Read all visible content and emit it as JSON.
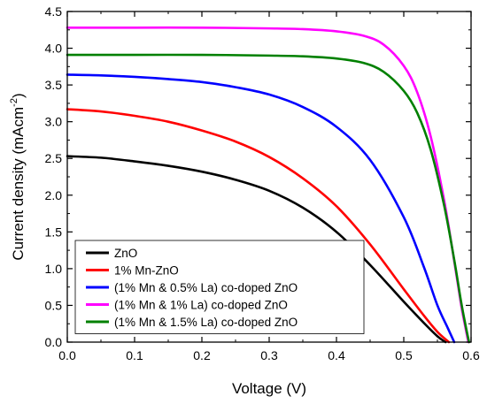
{
  "chart_data": {
    "type": "line",
    "title": "",
    "xlabel": "Voltage (V)",
    "ylabel_main": "Current density (mAcm",
    "ylabel_sup": "-2",
    "ylabel_close": ")",
    "xlim": [
      0.0,
      0.6
    ],
    "ylim": [
      0.0,
      4.5
    ],
    "x_ticks": [
      0.0,
      0.1,
      0.2,
      0.3,
      0.4,
      0.5,
      0.6
    ],
    "x_tick_labels": [
      "0.0",
      "0.1",
      "0.2",
      "0.3",
      "0.4",
      "0.5",
      "0.6"
    ],
    "y_ticks": [
      0.0,
      0.5,
      1.0,
      1.5,
      2.0,
      2.5,
      3.0,
      3.5,
      4.0,
      4.5
    ],
    "y_tick_labels": [
      "0.0",
      "0.5",
      "1.0",
      "1.5",
      "2.0",
      "2.5",
      "3.0",
      "3.5",
      "4.0",
      "4.5"
    ],
    "grid": false,
    "legend_position": "bottom-left",
    "series": [
      {
        "name": "ZnO",
        "color": "#000000",
        "x": [
          0.0,
          0.05,
          0.1,
          0.15,
          0.2,
          0.25,
          0.3,
          0.35,
          0.4,
          0.45,
          0.5,
          0.53,
          0.55,
          0.562
        ],
        "y": [
          2.53,
          2.51,
          2.46,
          2.4,
          2.32,
          2.21,
          2.06,
          1.83,
          1.5,
          1.05,
          0.55,
          0.26,
          0.08,
          0.0
        ]
      },
      {
        "name": "1% Mn-ZnO",
        "color": "#ff0000",
        "x": [
          0.0,
          0.05,
          0.1,
          0.15,
          0.2,
          0.25,
          0.3,
          0.35,
          0.4,
          0.45,
          0.5,
          0.53,
          0.55,
          0.567
        ],
        "y": [
          3.17,
          3.14,
          3.08,
          3.0,
          2.88,
          2.73,
          2.52,
          2.23,
          1.85,
          1.33,
          0.72,
          0.36,
          0.14,
          0.0
        ]
      },
      {
        "name": "(1% Mn & 0.5% La) co-doped ZnO",
        "color": "#0000ff",
        "x": [
          0.0,
          0.05,
          0.1,
          0.15,
          0.2,
          0.25,
          0.3,
          0.35,
          0.4,
          0.45,
          0.5,
          0.53,
          0.55,
          0.565,
          0.575
        ],
        "y": [
          3.64,
          3.63,
          3.61,
          3.58,
          3.54,
          3.47,
          3.37,
          3.2,
          2.93,
          2.48,
          1.7,
          1.02,
          0.5,
          0.2,
          0.0
        ]
      },
      {
        "name": "(1% Mn & 1% La) co-doped ZnO",
        "color": "#ff00ff",
        "x": [
          0.0,
          0.1,
          0.2,
          0.3,
          0.35,
          0.4,
          0.44,
          0.47,
          0.5,
          0.52,
          0.54,
          0.56,
          0.575,
          0.585,
          0.592,
          0.596
        ],
        "y": [
          4.28,
          4.28,
          4.28,
          4.27,
          4.26,
          4.23,
          4.17,
          4.05,
          3.76,
          3.4,
          2.8,
          1.93,
          1.1,
          0.52,
          0.18,
          0.0
        ]
      },
      {
        "name": "(1% Mn & 1.5% La) co-doped ZnO",
        "color": "#008000",
        "x": [
          0.0,
          0.1,
          0.2,
          0.3,
          0.35,
          0.4,
          0.44,
          0.47,
          0.5,
          0.52,
          0.54,
          0.56,
          0.575,
          0.585,
          0.592,
          0.597
        ],
        "y": [
          3.91,
          3.91,
          3.91,
          3.9,
          3.89,
          3.86,
          3.8,
          3.68,
          3.42,
          3.12,
          2.62,
          1.86,
          1.12,
          0.56,
          0.22,
          0.0
        ]
      }
    ]
  }
}
